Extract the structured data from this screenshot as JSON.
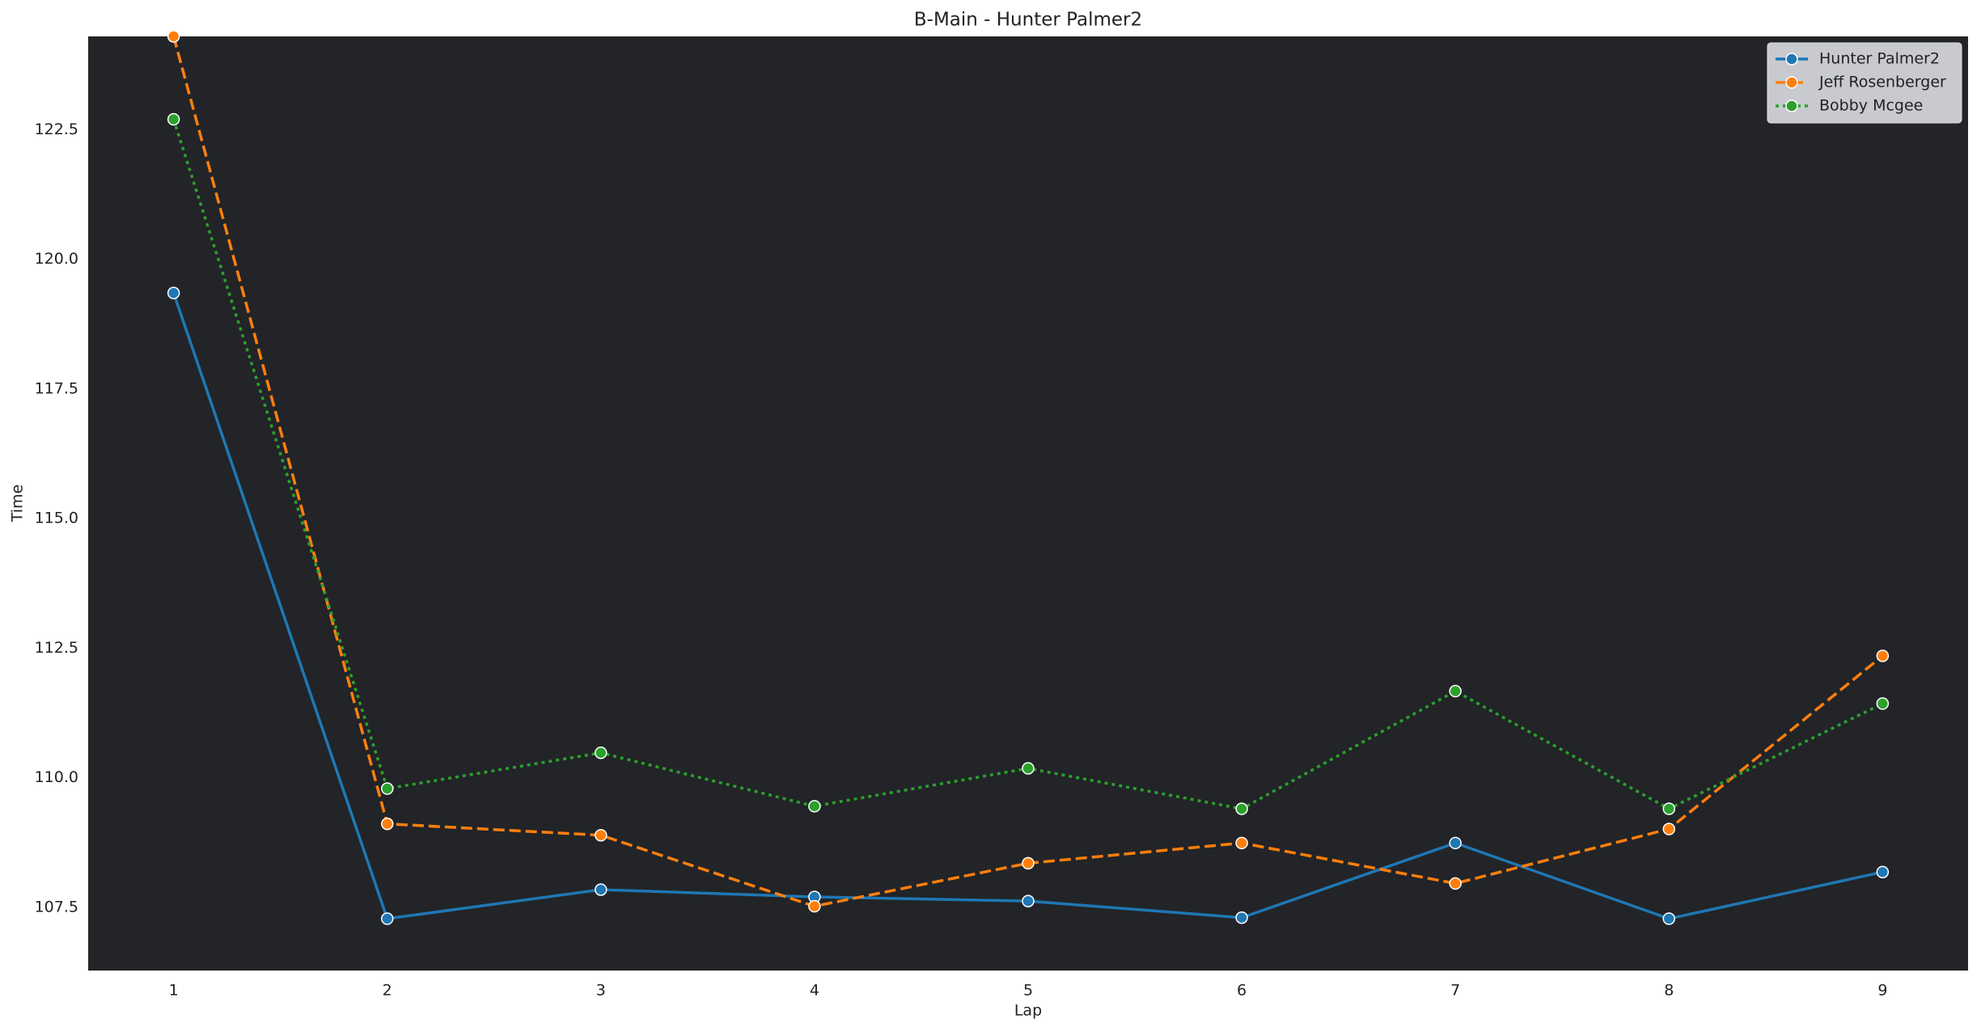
{
  "chart_data": {
    "type": "line",
    "title": "B-Main - Hunter Palmer2",
    "xlabel": "Lap",
    "ylabel": "Time",
    "x": [
      1,
      2,
      3,
      4,
      5,
      6,
      7,
      8,
      9
    ],
    "series": [
      {
        "name": "Hunter Palmer2",
        "color": "#1f77b4",
        "linestyle": "solid",
        "values": [
          119.35,
          107.28,
          107.84,
          107.7,
          107.62,
          107.3,
          108.74,
          107.28,
          108.18
        ]
      },
      {
        "name": "Jeff Rosenberger",
        "color": "#ff7f0e",
        "linestyle": "dashed",
        "values": [
          124.3,
          109.11,
          108.89,
          107.52,
          108.35,
          108.74,
          107.96,
          109.01,
          112.35
        ]
      },
      {
        "name": "Bobby Mcgee",
        "color": "#2ca02c",
        "linestyle": "dotted",
        "values": [
          122.7,
          109.79,
          110.48,
          109.45,
          110.18,
          109.4,
          111.67,
          109.4,
          111.43
        ]
      }
    ],
    "xlim": [
      0.6,
      9.4
    ],
    "xticks": [
      1,
      2,
      3,
      4,
      5,
      6,
      7,
      8,
      9
    ],
    "ylim": [
      106.28,
      124.3
    ],
    "yticks": [
      107.5,
      {
        "value": 110,
        "label": "110.0"
      },
      112.5,
      {
        "value": 115,
        "label": "115.0"
      },
      117.5,
      {
        "value": 120,
        "label": "120.0"
      },
      122.5
    ],
    "grid": false,
    "legend": "upper right"
  }
}
